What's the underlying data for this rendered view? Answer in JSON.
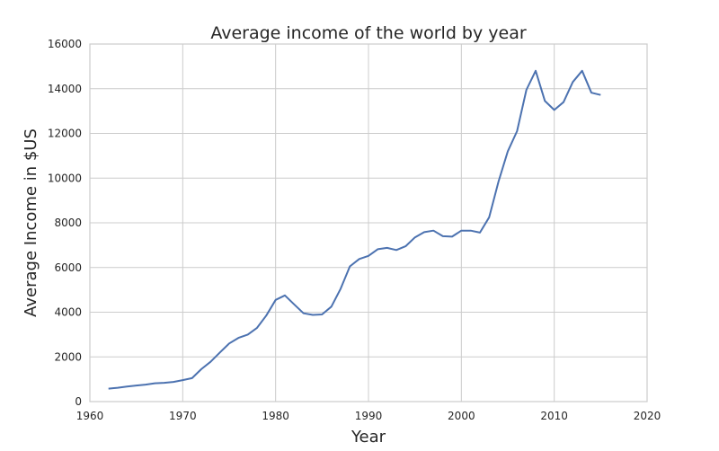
{
  "chart_data": {
    "type": "line",
    "title": "Average income of the world by year",
    "xlabel": "Year",
    "ylabel": "Average Income in $US",
    "xlim": [
      1960,
      2020
    ],
    "ylim": [
      0,
      16000
    ],
    "xticks": [
      1960,
      1970,
      1980,
      1990,
      2000,
      2010,
      2020
    ],
    "yticks": [
      0,
      2000,
      4000,
      6000,
      8000,
      10000,
      12000,
      14000,
      16000
    ],
    "grid": true,
    "colors": {
      "line": "#4c72b0",
      "grid": "#cccccc",
      "background": "#ffffff"
    },
    "series": [
      {
        "x": [
          1962,
          1963,
          1964,
          1965,
          1966,
          1967,
          1968,
          1969,
          1970,
          1971,
          1972,
          1973,
          1974,
          1975,
          1976,
          1977,
          1978,
          1979,
          1980,
          1981,
          1982,
          1983,
          1984,
          1985,
          1986,
          1987,
          1988,
          1989,
          1990,
          1991,
          1992,
          1993,
          1994,
          1995,
          1996,
          1997,
          1998,
          1999,
          2000,
          2001,
          2002,
          2003,
          2004,
          2005,
          2006,
          2007,
          2008,
          2009,
          2010,
          2011,
          2012,
          2013,
          2014,
          2015
        ],
        "values": [
          580,
          620,
          670,
          720,
          760,
          820,
          840,
          880,
          960,
          1050,
          1450,
          1780,
          2200,
          2600,
          2850,
          3000,
          3300,
          3850,
          4550,
          4750,
          4350,
          3950,
          3880,
          3900,
          4250,
          5050,
          6050,
          6380,
          6520,
          6820,
          6880,
          6780,
          6950,
          7350,
          7580,
          7650,
          7400,
          7380,
          7650,
          7650,
          7560,
          8250,
          9850,
          11200,
          12100,
          13950,
          14800,
          13450,
          13050,
          13400,
          14300,
          14800,
          13820,
          13720
        ]
      }
    ]
  }
}
